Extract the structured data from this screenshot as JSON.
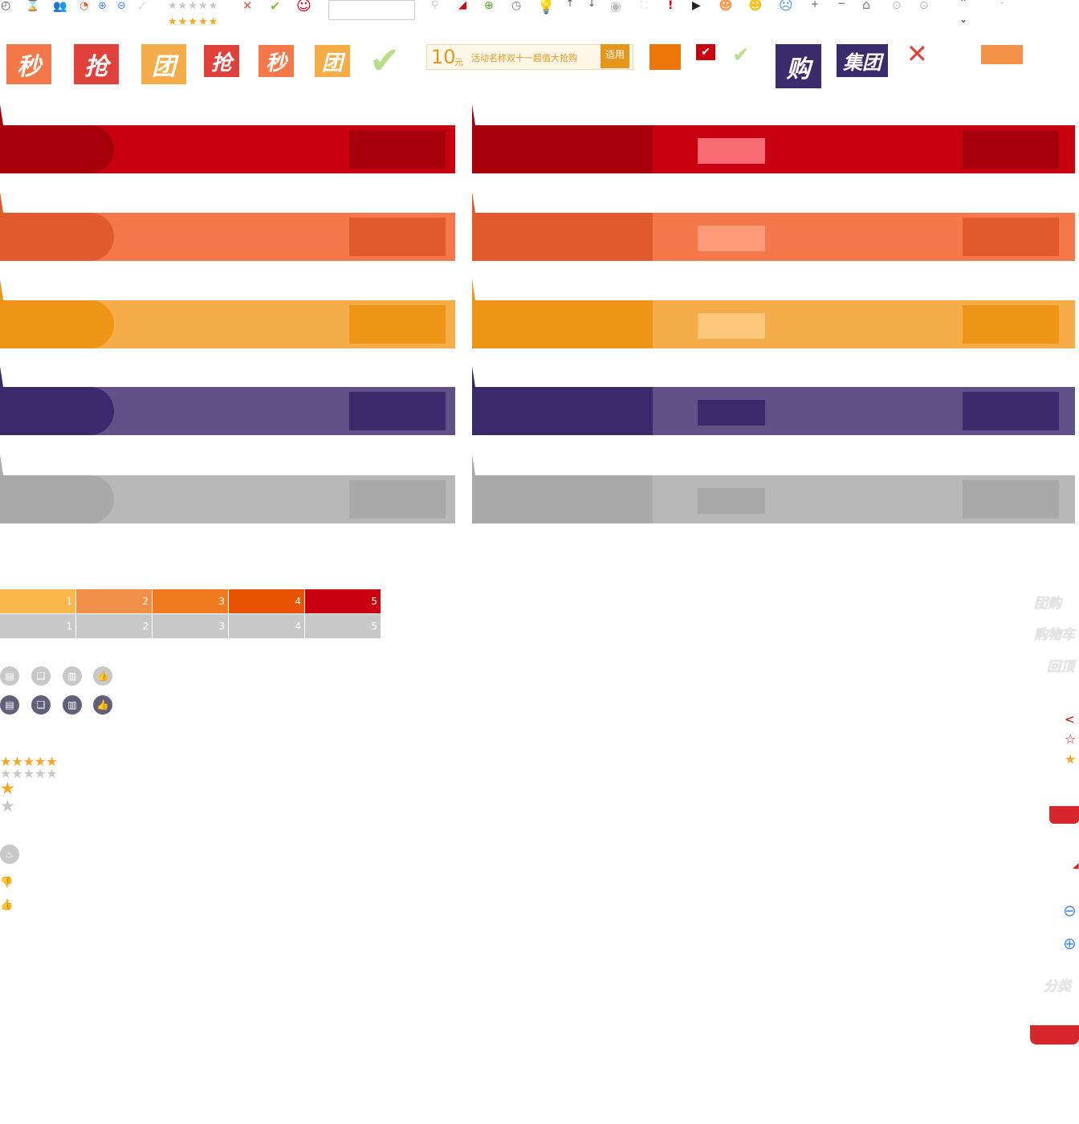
{
  "tiles": [
    "秒",
    "抢",
    "团",
    "抢",
    "秒",
    "团"
  ],
  "coupon": {
    "amount": "10",
    "unit": "元",
    "text": "活动名称双十一超值大抢购",
    "tag": "适用"
  },
  "badges": {
    "gou": "购",
    "jituan": "集团"
  },
  "progress": {
    "labels": [
      "1",
      "2",
      "3",
      "4",
      "5"
    ]
  },
  "side_text": {
    "tuangou": "团购",
    "cart": "购物车",
    "top": "回顶",
    "classify": "分类"
  },
  "colors": {
    "red": "#c8000f",
    "orange": "#f4784a",
    "yellow": "#f5ad4a",
    "purple": "#605188",
    "gray": "#b8b8b8"
  }
}
